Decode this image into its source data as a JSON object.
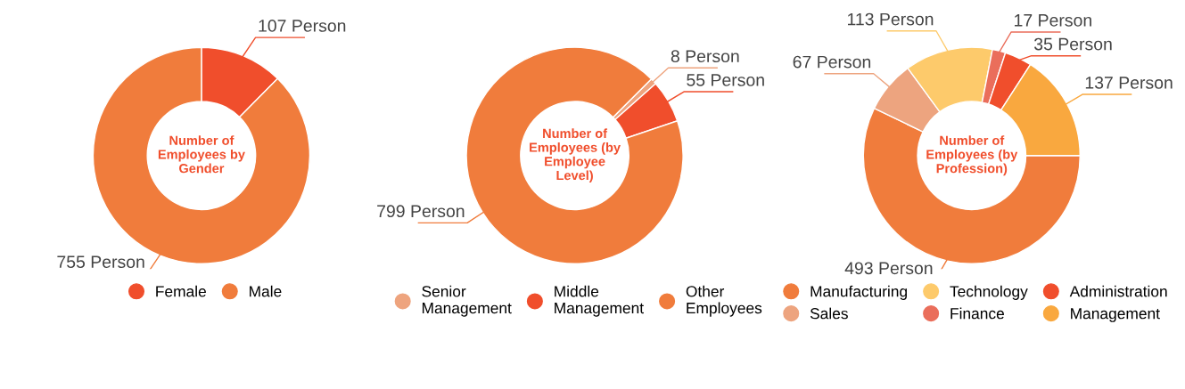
{
  "chart_data": [
    {
      "type": "donut",
      "title": "Number of Employees by Gender",
      "categories": [
        "Female",
        "Male"
      ],
      "values": [
        107,
        755
      ],
      "colors": [
        "#f04e2c",
        "#f07c3c"
      ],
      "value_labels": [
        "107 Person",
        "755 Person"
      ],
      "legend": "bottom"
    },
    {
      "type": "donut",
      "title": "Number of Employees (by Employee Level)",
      "categories": [
        "Senior Management",
        "Middle Management",
        "Other Employees"
      ],
      "values": [
        8,
        55,
        799
      ],
      "colors": [
        "#eea47e",
        "#f04e2c",
        "#f07c3c"
      ],
      "value_labels": [
        "8 Person",
        "55 Person",
        "799 Person"
      ],
      "legend": "bottom"
    },
    {
      "type": "donut",
      "title": "Number of Employees (by Profession)",
      "categories": [
        "Manufacturing",
        "Sales",
        "Technology",
        "Finance",
        "Administration",
        "Management"
      ],
      "values": [
        493,
        67,
        113,
        17,
        35,
        137
      ],
      "colors": [
        "#f07c3c",
        "#eda47f",
        "#fdca6b",
        "#ea6e5b",
        "#f04e2c",
        "#f9a83f"
      ],
      "value_labels": [
        "493 Person",
        "67 Person",
        "113 Person",
        "17 Person",
        "35 Person",
        "137 Person"
      ],
      "legend": "bottom"
    }
  ]
}
